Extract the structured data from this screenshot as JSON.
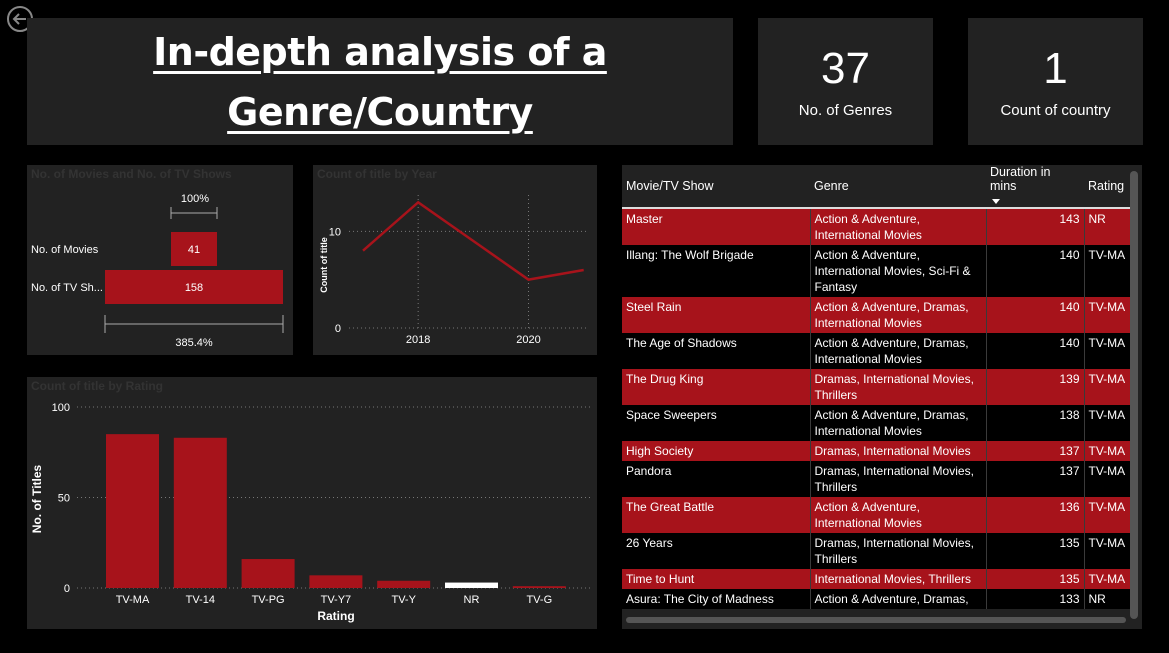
{
  "nav": {
    "back_icon": "back-arrow-icon"
  },
  "header": {
    "title_line1": "In-depth analysis of a ",
    "title_line2": "Genre/Country"
  },
  "kpis": [
    {
      "value": "37",
      "label": "No. of Genres"
    },
    {
      "value": "1",
      "label": "Count of country"
    }
  ],
  "movies_tv_chart": {
    "title": "No. of Movies and No. of TV Shows",
    "percent_top": "100%",
    "percent_bottom": "385.4%",
    "colors": {
      "bar": "#a7131b"
    },
    "chart_data": {
      "type": "bar",
      "categories": [
        "No. of Movies",
        "No. of TV Sh..."
      ],
      "values": [
        41,
        158
      ]
    }
  },
  "year_chart": {
    "title": "Count of title by Year",
    "ylabel": "Count of title",
    "chart_data": {
      "type": "line",
      "x": [
        2017,
        2018,
        2019,
        2020,
        2021
      ],
      "values": [
        8,
        13,
        9,
        5,
        6
      ],
      "ylim": [
        0,
        15
      ],
      "yticks": [
        "0",
        "10"
      ],
      "xticks": [
        "2018",
        "2020"
      ]
    }
  },
  "rating_chart": {
    "title": "Count of title by Rating",
    "xlabel": "Rating",
    "ylabel": "No. of Titles",
    "chart_data": {
      "type": "bar",
      "categories": [
        "TV-MA",
        "TV-14",
        "TV-PG",
        "TV-Y7",
        "TV-Y",
        "NR",
        "TV-G"
      ],
      "values": [
        85,
        83,
        16,
        7,
        4,
        3,
        1
      ],
      "ylim": [
        0,
        100
      ],
      "yticks": [
        "0",
        "50",
        "100"
      ],
      "colors": [
        "#a7131b",
        "#a7131b",
        "#a7131b",
        "#a7131b",
        "#a7131b",
        "#ffffff",
        "#a7131b"
      ]
    }
  },
  "table": {
    "columns": [
      "Movie/TV Show",
      "Genre",
      "Duration in mins",
      "Rating"
    ],
    "rows": [
      {
        "title": "Master",
        "genre": "Action & Adventure, International Movies",
        "duration": "143",
        "rating": "NR"
      },
      {
        "title": "Illang: The Wolf Brigade",
        "genre": "Action & Adventure, International Movies, Sci-Fi & Fantasy",
        "duration": "140",
        "rating": "TV-MA"
      },
      {
        "title": "Steel Rain",
        "genre": "Action & Adventure, Dramas, International Movies",
        "duration": "140",
        "rating": "TV-MA"
      },
      {
        "title": "The Age of Shadows",
        "genre": "Action & Adventure, Dramas, International Movies",
        "duration": "140",
        "rating": "TV-MA"
      },
      {
        "title": "The Drug King",
        "genre": "Dramas, International Movies, Thrillers",
        "duration": "139",
        "rating": "TV-MA"
      },
      {
        "title": "Space Sweepers",
        "genre": "Action & Adventure, Dramas, International Movies",
        "duration": "138",
        "rating": "TV-MA"
      },
      {
        "title": "High Society",
        "genre": "Dramas, International Movies",
        "duration": "137",
        "rating": "TV-MA"
      },
      {
        "title": "Pandora",
        "genre": "Dramas, International Movies, Thrillers",
        "duration": "137",
        "rating": "TV-MA"
      },
      {
        "title": "The Great Battle",
        "genre": "Action & Adventure, International Movies",
        "duration": "136",
        "rating": "TV-MA"
      },
      {
        "title": "26 Years",
        "genre": "Dramas, International Movies, Thrillers",
        "duration": "135",
        "rating": "TV-MA"
      },
      {
        "title": "Time to Hunt",
        "genre": "International Movies, Thrillers",
        "duration": "135",
        "rating": "TV-MA"
      },
      {
        "title": "Asura: The City of Madness",
        "genre": "Action & Adventure, Dramas,",
        "duration": "133",
        "rating": "NR"
      }
    ]
  }
}
